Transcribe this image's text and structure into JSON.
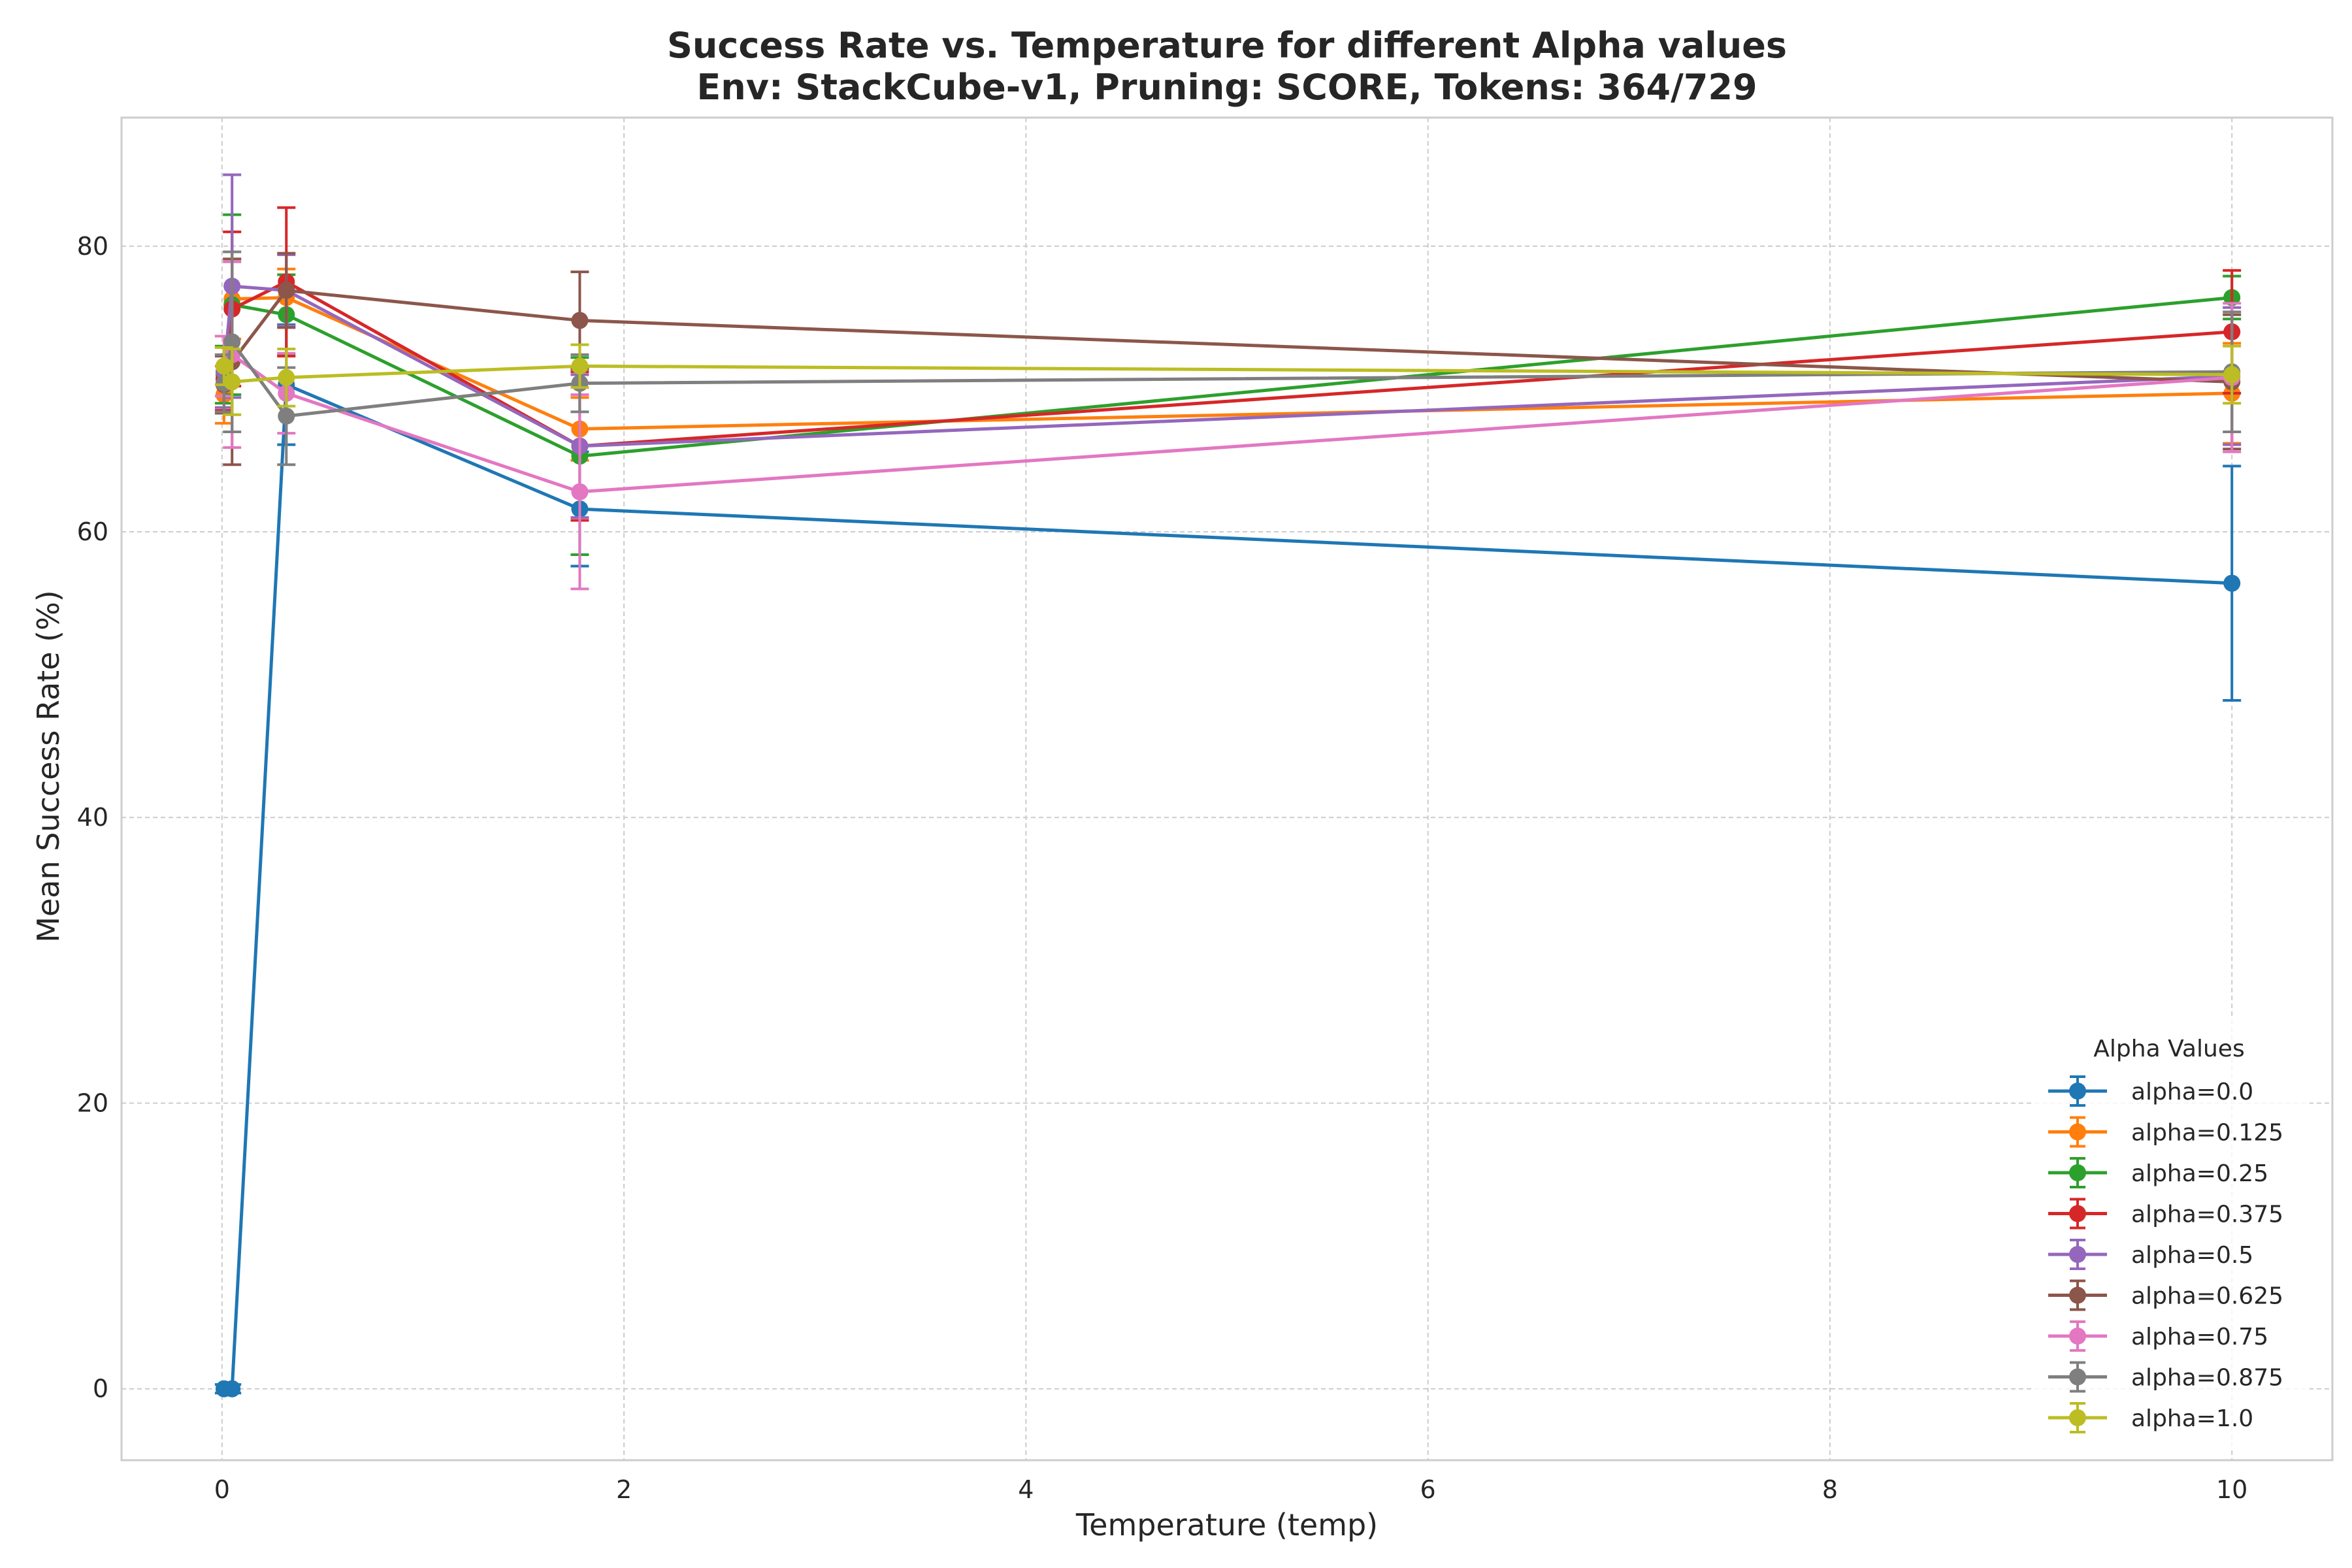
{
  "chart_data": {
    "type": "line",
    "title_line1": "Success Rate vs. Temperature for different Alpha values",
    "title_line2": "Env: StackCube-v1, Pruning: SCORE, Tokens: 364/729",
    "xlabel": "Temperature (temp)",
    "ylabel": "Mean Success Rate (%)",
    "xlim": [
      -0.5,
      10.5
    ],
    "ylim": [
      -5,
      89
    ],
    "xticks": [
      0,
      2,
      4,
      6,
      8,
      10
    ],
    "yticks": [
      0,
      20,
      40,
      60,
      80
    ],
    "grid": true,
    "legend": {
      "title": "Alpha Values",
      "position": "lower-right"
    },
    "series": [
      {
        "name": "alpha=0.0",
        "color": "#1f77b4",
        "x": [
          0.01,
          0.05,
          0.32,
          1.78,
          10.0
        ],
        "y": [
          0.0,
          0.0,
          70.3,
          61.6,
          56.4
        ],
        "err": [
          0.3,
          0.3,
          4.2,
          4.0,
          8.2
        ]
      },
      {
        "name": "alpha=0.125",
        "color": "#ff7f0e",
        "x": [
          0.01,
          0.05,
          0.32,
          1.78,
          10.0
        ],
        "y": [
          69.6,
          76.3,
          76.4,
          67.2,
          69.7
        ],
        "err": [
          2.0,
          2.8,
          2.0,
          2.2,
          3.5
        ]
      },
      {
        "name": "alpha=0.25",
        "color": "#2ca02c",
        "x": [
          0.01,
          0.05,
          0.32,
          1.78,
          10.0
        ],
        "y": [
          71.0,
          75.9,
          75.2,
          65.3,
          76.4
        ],
        "err": [
          2.0,
          6.3,
          2.8,
          6.9,
          1.5
        ]
      },
      {
        "name": "alpha=0.375",
        "color": "#d62728",
        "x": [
          0.01,
          0.05,
          0.32,
          1.78,
          10.0
        ],
        "y": [
          70.7,
          75.6,
          77.5,
          66.0,
          74.0
        ],
        "err": [
          2.2,
          5.4,
          5.2,
          5.2,
          4.3
        ]
      },
      {
        "name": "alpha=0.5",
        "color": "#9467bd",
        "x": [
          0.01,
          0.05,
          0.32,
          1.78,
          10.0
        ],
        "y": [
          71.2,
          77.2,
          76.9,
          66.0,
          70.9
        ],
        "err": [
          2.5,
          7.8,
          2.5,
          5.0,
          4.8
        ]
      },
      {
        "name": "alpha=0.625",
        "color": "#8c564b",
        "x": [
          0.01,
          0.05,
          0.32,
          1.78,
          10.0
        ],
        "y": [
          70.3,
          71.9,
          76.9,
          74.8,
          70.5
        ],
        "err": [
          2.0,
          7.2,
          2.6,
          3.4,
          4.7
        ]
      },
      {
        "name": "alpha=0.75",
        "color": "#e377c2",
        "x": [
          0.01,
          0.05,
          0.32,
          1.78,
          10.0
        ],
        "y": [
          71.6,
          72.4,
          69.7,
          62.8,
          70.8
        ],
        "err": [
          2.1,
          6.5,
          2.8,
          6.8,
          5.2
        ]
      },
      {
        "name": "alpha=0.875",
        "color": "#7f7f7f",
        "x": [
          0.01,
          0.05,
          0.32,
          1.78,
          10.0
        ],
        "y": [
          70.4,
          73.3,
          68.1,
          70.4,
          71.2
        ],
        "err": [
          2.0,
          6.3,
          3.4,
          2.0,
          4.2
        ]
      },
      {
        "name": "alpha=1.0",
        "color": "#bcbd22",
        "x": [
          0.01,
          0.05,
          0.32,
          1.78,
          10.0
        ],
        "y": [
          71.6,
          70.5,
          70.8,
          71.6,
          71.0
        ],
        "err": [
          1.3,
          2.3,
          2.0,
          1.5,
          2.0
        ]
      }
    ]
  }
}
